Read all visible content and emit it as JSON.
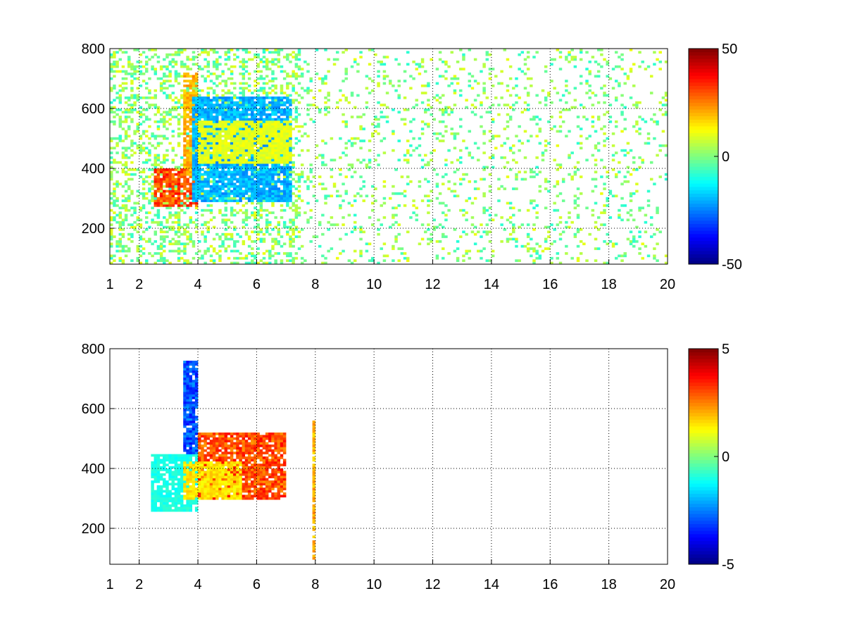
{
  "chart_data": [
    {
      "type": "heatmap",
      "title": "",
      "xlabel": "",
      "ylabel": "",
      "xlim": [
        1,
        20
      ],
      "ylim": [
        80,
        800
      ],
      "x_ticks": [
        "1",
        "2",
        "4",
        "6",
        "8",
        "10",
        "12",
        "14",
        "16",
        "18",
        "20"
      ],
      "y_ticks": [
        "200",
        "400",
        "600",
        "800"
      ],
      "grid": true,
      "colormap": "jet",
      "colorbar": {
        "range": [
          -50,
          50
        ],
        "tick_labels": [
          "-50",
          "0",
          "50"
        ]
      },
      "features": [
        {
          "name": "",
          "x_range": [
            2.5,
            4.0
          ],
          "y_range": [
            270,
            400
          ],
          "value": 30
        },
        {
          "name": "",
          "x_range": [
            3.5,
            4.0
          ],
          "y_range": [
            380,
            720
          ],
          "value": 20
        },
        {
          "name": "",
          "x_range": [
            3.8,
            7.2
          ],
          "y_range": [
            290,
            640
          ],
          "value": -20
        },
        {
          "name": "",
          "x_range": [
            4.0,
            7.2
          ],
          "y_range": [
            420,
            560
          ],
          "value": 10
        }
      ],
      "noise_level": 10
    },
    {
      "type": "heatmap",
      "title": "",
      "xlabel": "",
      "ylabel": "",
      "xlim": [
        1,
        20
      ],
      "ylim": [
        80,
        800
      ],
      "x_ticks": [
        "1",
        "2",
        "4",
        "6",
        "8",
        "10",
        "12",
        "14",
        "16",
        "18",
        "20"
      ],
      "y_ticks": [
        "200",
        "400",
        "600",
        "800"
      ],
      "grid": true,
      "colormap": "jet",
      "colorbar": {
        "range": [
          -5,
          5
        ],
        "tick_labels": [
          "-5",
          "0",
          "5"
        ]
      },
      "features": [
        {
          "name": "",
          "x_range": [
            3.5,
            4.0
          ],
          "y_range": [
            450,
            760
          ],
          "value": -3
        },
        {
          "name": "",
          "x_range": [
            2.4,
            4.0
          ],
          "y_range": [
            260,
            450
          ],
          "value": -1
        },
        {
          "name": "",
          "x_range": [
            4.0,
            7.0
          ],
          "y_range": [
            300,
            520
          ],
          "value": 3
        },
        {
          "name": "",
          "x_range": [
            3.5,
            5.5
          ],
          "y_range": [
            300,
            420
          ],
          "value": 1.5
        },
        {
          "name": "",
          "x_range": [
            7.9,
            8.0
          ],
          "y_range": [
            100,
            560
          ],
          "value": 2
        }
      ],
      "noise_level": 1
    }
  ]
}
